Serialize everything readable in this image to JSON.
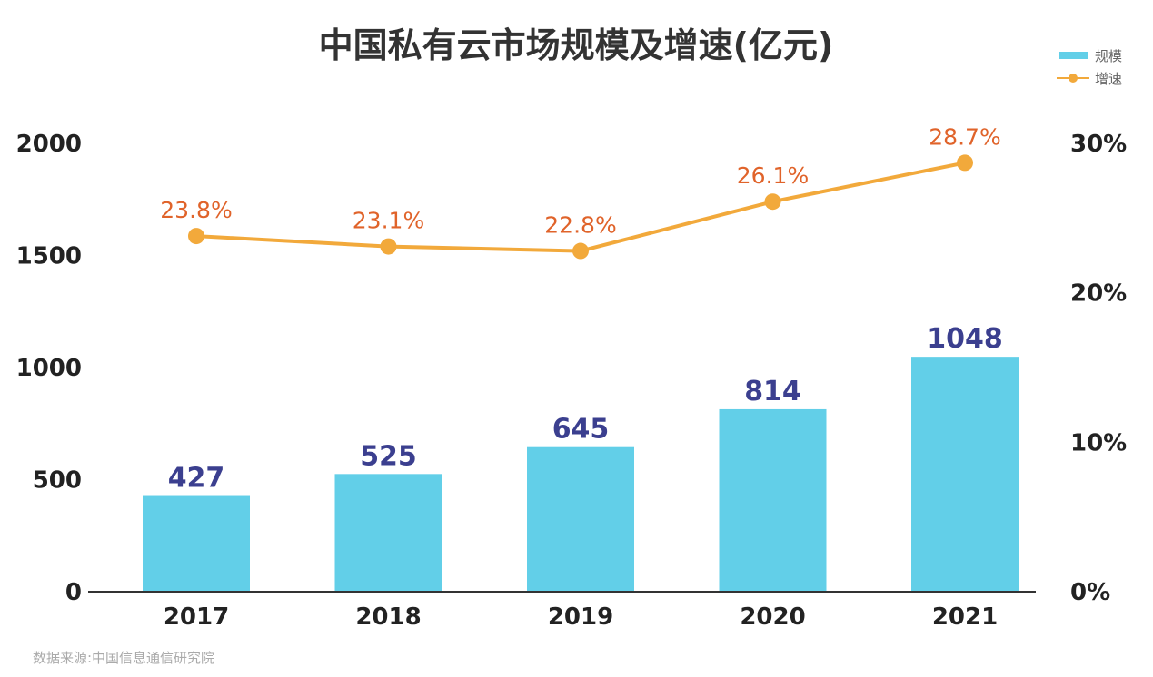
{
  "chart_data": {
    "type": "bar+line",
    "title": "中国私有云市场规模及增速(亿元)",
    "categories": [
      "2017",
      "2018",
      "2019",
      "2020",
      "2021"
    ],
    "series": [
      {
        "name": "规模",
        "type": "bar",
        "axis": "left",
        "values": [
          427,
          525,
          645,
          814,
          1048
        ],
        "labels": [
          "427",
          "525",
          "645",
          "814",
          "1048"
        ],
        "color": "#62cfe8"
      },
      {
        "name": "增速",
        "type": "line",
        "axis": "right",
        "values": [
          23.8,
          23.1,
          22.8,
          26.1,
          28.7
        ],
        "labels": [
          "23.8%",
          "23.1%",
          "22.8%",
          "26.1%",
          "28.7%"
        ],
        "color": "#f2a93b",
        "label_color": "#e0632a"
      }
    ],
    "left_axis": {
      "ylim": [
        0,
        2000
      ],
      "ticks": [
        "0",
        "500",
        "1000",
        "1500",
        "2000"
      ]
    },
    "right_axis": {
      "ylim": [
        0,
        30
      ],
      "ticks": [
        "0%",
        "10%",
        "20%",
        "30%"
      ]
    },
    "grid": false,
    "legend": "top-right",
    "bar_label_color": "#3b3f8f"
  },
  "source": "数据来源:中国信息通信研究院"
}
